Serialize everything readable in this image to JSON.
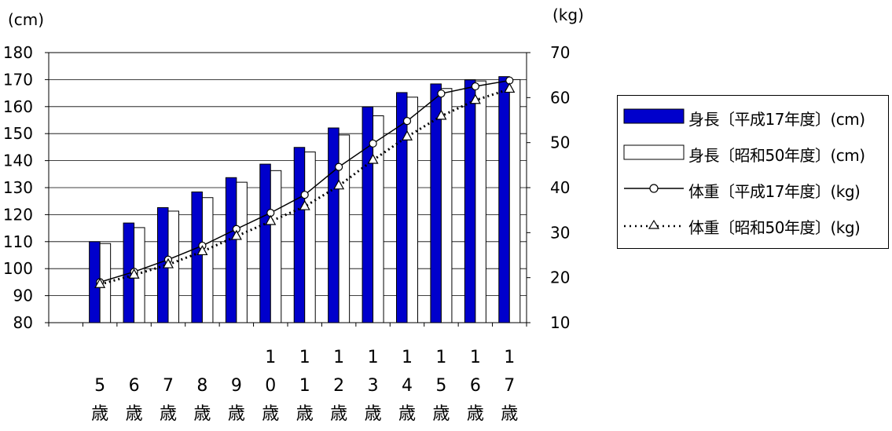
{
  "chart_data": {
    "type": "bar",
    "categories": [
      "5歳",
      "6歳",
      "7歳",
      "8歳",
      "9歳",
      "10歳",
      "11歳",
      "12歳",
      "13歳",
      "14歳",
      "15歳",
      "16歳",
      "17歳"
    ],
    "category_digits": [
      "5",
      "6",
      "7",
      "8",
      "9",
      "10",
      "11",
      "12",
      "13",
      "14",
      "15",
      "16",
      "17"
    ],
    "category_suffix": "歳",
    "y_left": {
      "unit": "(cm)",
      "ylim": [
        80,
        180
      ],
      "ticks": [
        80,
        90,
        100,
        110,
        120,
        130,
        140,
        150,
        160,
        170,
        180
      ]
    },
    "y_right": {
      "unit": "(kg)",
      "ylim": [
        10,
        70
      ],
      "ticks": [
        10,
        20,
        30,
        40,
        50,
        60,
        70
      ]
    },
    "grid": true,
    "legend_position": "right",
    "series": [
      {
        "name": "身長〔平成17年度〕(cm)",
        "kind": "bar",
        "axis": "left",
        "color": "#0000cc",
        "values": [
          110.0,
          116.9,
          122.6,
          128.4,
          133.7,
          138.7,
          144.9,
          152.1,
          159.9,
          165.2,
          168.4,
          169.9,
          171.1
        ]
      },
      {
        "name": "身長〔昭和50年度〕(cm)",
        "kind": "bar",
        "axis": "left",
        "color": "#ffffff",
        "values": [
          109.3,
          115.2,
          121.3,
          126.3,
          132.0,
          136.3,
          143.2,
          149.5,
          156.6,
          163.5,
          166.7,
          169.5,
          170.0
        ]
      },
      {
        "name": "体重〔平成17年度〕(kg)",
        "kind": "line",
        "axis": "right",
        "marker": "circle",
        "line_style": "solid",
        "values": [
          19.0,
          21.3,
          24.0,
          27.1,
          30.8,
          34.4,
          38.4,
          44.6,
          49.8,
          54.8,
          60.9,
          62.5,
          63.8
        ]
      },
      {
        "name": "体重〔昭和50年度〕(kg)",
        "kind": "line",
        "axis": "right",
        "marker": "triangle",
        "line_style": "dotted",
        "values": [
          18.5,
          20.6,
          22.9,
          25.8,
          29.2,
          32.5,
          35.8,
          40.4,
          46.1,
          51.3,
          55.9,
          59.4,
          61.9
        ]
      }
    ]
  }
}
